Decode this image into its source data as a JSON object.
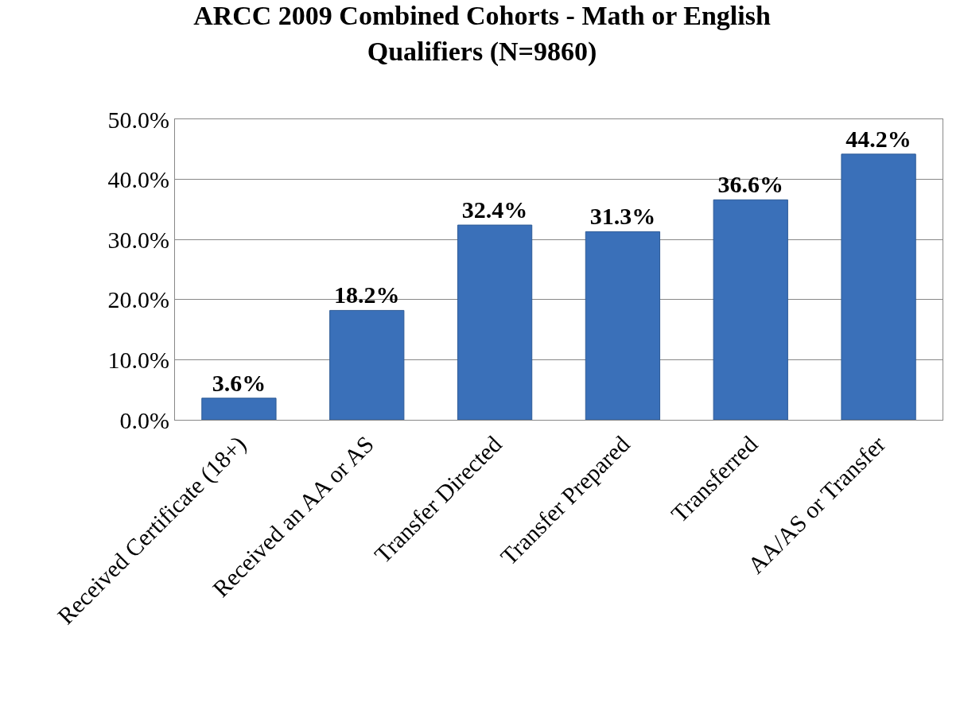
{
  "chart_data": {
    "type": "bar",
    "title": "ARCC 2009 Combined Cohorts - Math or English\nQualifiers (N=9860)",
    "categories": [
      "Received Certificate (18+)",
      "Received an AA or AS",
      "Transfer Directed",
      "Transfer Prepared",
      "Transferred",
      "AA/AS or Transfer"
    ],
    "values": [
      3.6,
      18.2,
      32.4,
      31.3,
      36.6,
      44.2
    ],
    "value_labels": [
      "3.6%",
      "18.2%",
      "32.4%",
      "31.3%",
      "36.6%",
      "44.2%"
    ],
    "color": "#3a70b9",
    "ylim": [
      0,
      50
    ],
    "yticks": [
      {
        "value": 0,
        "label": "0.0%"
      },
      {
        "value": 10,
        "label": "10.0%"
      },
      {
        "value": 20,
        "label": "20.0%"
      },
      {
        "value": 30,
        "label": "30.0%"
      },
      {
        "value": 40,
        "label": "40.0%"
      },
      {
        "value": 50,
        "label": "50.0%"
      }
    ],
    "grid": "y",
    "legend": false
  }
}
